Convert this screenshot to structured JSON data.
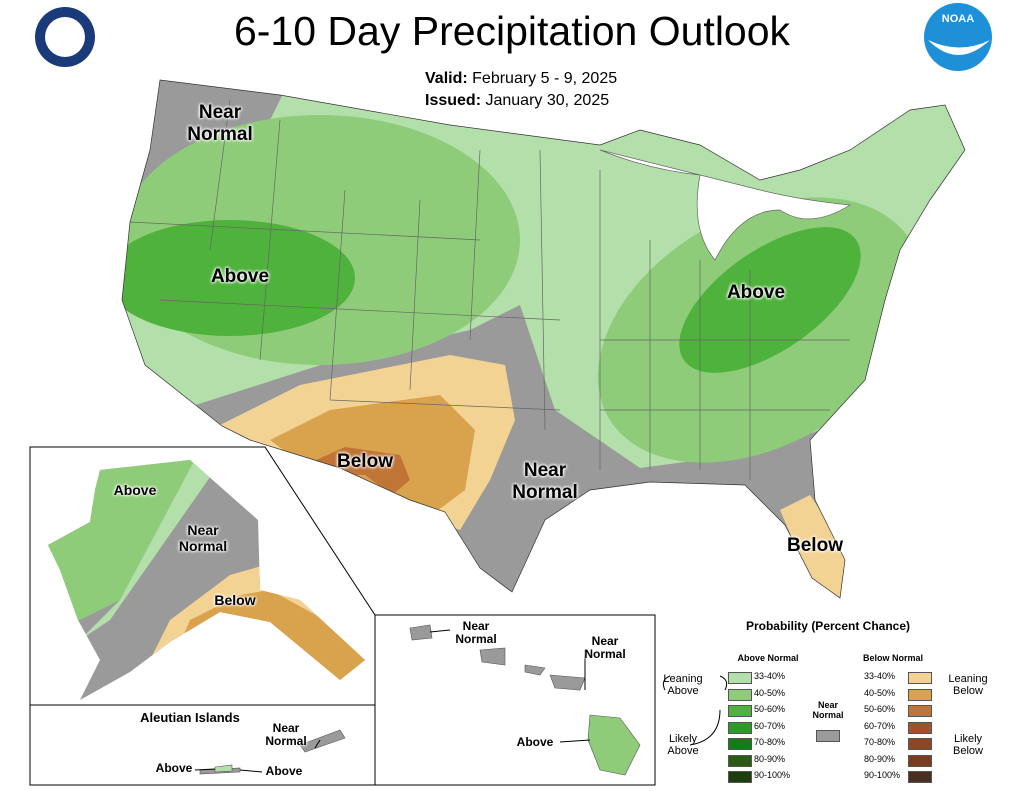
{
  "header": {
    "title": "6-10 Day Precipitation Outlook",
    "valid_label": "Valid:",
    "valid_dates": "February 5 - 9, 2025",
    "issued_label": "Issued:",
    "issued_date": "January 30, 2025",
    "logo_text": "NOAA"
  },
  "map_labels": {
    "conus": [
      "Near Normal",
      "Above",
      "Above",
      "Below",
      "Near Normal",
      "Below"
    ],
    "alaska": [
      "Above",
      "Near Normal",
      "Below"
    ],
    "aleutians": {
      "title": "Aleutian Islands",
      "labels": [
        "Near Normal",
        "Above",
        "Above"
      ]
    },
    "hawaii": [
      "Near Normal",
      "Near Normal",
      "Above"
    ]
  },
  "legend": {
    "title": "Probability (Percent Chance)",
    "above_heading": "Above Normal",
    "below_heading": "Below Normal",
    "near": "Near Normal",
    "near_color": "#9a9a9a",
    "leaning_above": "Leaning Above",
    "likely_above": "Likely Above",
    "leaning_below": "Leaning Below",
    "likely_below": "Likely Below",
    "above_classes": [
      {
        "label": "33-40%",
        "color": "#b3dfaa"
      },
      {
        "label": "40-50%",
        "color": "#8fcc7a"
      },
      {
        "label": "50-60%",
        "color": "#4fb23c"
      },
      {
        "label": "60-70%",
        "color": "#2f9a2a"
      },
      {
        "label": "70-80%",
        "color": "#137d19"
      },
      {
        "label": "80-90%",
        "color": "#2a5a14"
      },
      {
        "label": "90-100%",
        "color": "#1c3e0e"
      }
    ],
    "below_classes": [
      {
        "label": "33-40%",
        "color": "#f3d393"
      },
      {
        "label": "40-50%",
        "color": "#d9a24c"
      },
      {
        "label": "50-60%",
        "color": "#c07436"
      },
      {
        "label": "60-70%",
        "color": "#a0522d"
      },
      {
        "label": "70-80%",
        "color": "#8b4726"
      },
      {
        "label": "80-90%",
        "color": "#7a3b1e"
      },
      {
        "label": "90-100%",
        "color": "#4a3020"
      }
    ]
  }
}
